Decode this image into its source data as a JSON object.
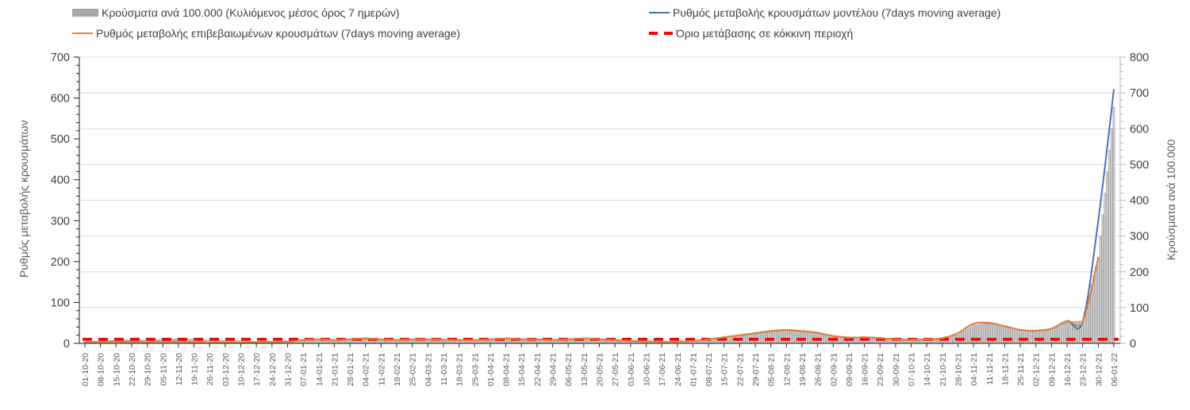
{
  "legend": {
    "items": [
      {
        "label": "Κρούσματα ανά 100.000 (Κυλιόμενος μέσος όρος 7 ημερών)",
        "swatch": "bar"
      },
      {
        "label": "Ρυθμός μεταβολής κρουσμάτων μοντέλου (7days moving average)",
        "swatch": "line-blue"
      },
      {
        "label": "Ρυθμός μεταβολής επιβεβαιωμένων κρουσμάτων (7days moving average)",
        "swatch": "line-orange"
      },
      {
        "label": "Όριο μετάβασης σε κόκκινη περιοχή",
        "swatch": "dash-red"
      }
    ]
  },
  "colors": {
    "bar_fill": "#d6d6d6",
    "bar_stroke": "#8f8f8f",
    "bar_legend": "#a8a8a8",
    "model_line": "#4472c4",
    "confirmed_line": "#ed7d31",
    "threshold": "#ff0000",
    "grid": "#d9d9d9",
    "axis_dark": "#404040",
    "axis_light": "#bfbfbf",
    "tick_text": "#404040",
    "xtick_text": "#595959"
  },
  "chart_data": {
    "type": "bar",
    "combo_note": "daily gray bars on right axis + two smoothed lines on left axis + red dashed threshold",
    "title": "",
    "axis_left": {
      "label": "Ρυθμός μεταβολής κρουσμάτων",
      "min": 0,
      "max": 700,
      "major_step": 100,
      "minor_step": 20,
      "ticks": [
        0,
        100,
        200,
        300,
        400,
        500,
        600,
        700
      ]
    },
    "axis_right": {
      "label": "Κρούσματα ανά 100.000",
      "min": 0,
      "max": 800,
      "major_step": 100,
      "minor_step": 20,
      "ticks": [
        0,
        100,
        200,
        300,
        400,
        500,
        600,
        700,
        800
      ]
    },
    "grid": "horizontal, every 100 of right axis",
    "legend_position": "top, two columns",
    "categories": [
      "01-10-20",
      "08-10-20",
      "15-10-20",
      "22-10-20",
      "29-10-20",
      "05-11-20",
      "12-11-20",
      "19-11-20",
      "26-11-20",
      "03-12-20",
      "10-12-20",
      "17-12-20",
      "24-12-20",
      "31-12-20",
      "07-01-21",
      "14-01-21",
      "21-01-21",
      "28-01-21",
      "04-02-21",
      "11-02-21",
      "18-02-21",
      "25-02-21",
      "04-03-21",
      "11-03-21",
      "18-03-21",
      "25-03-21",
      "01-04-21",
      "08-04-21",
      "15-04-21",
      "22-04-21",
      "29-04-21",
      "06-05-21",
      "13-05-21",
      "20-05-21",
      "27-05-21",
      "03-06-21",
      "10-06-21",
      "17-06-21",
      "24-06-21",
      "01-07-21",
      "08-07-21",
      "15-07-21",
      "22-07-21",
      "29-07-21",
      "05-08-21",
      "12-08-21",
      "19-08-21",
      "26-08-21",
      "02-09-21",
      "09-09-21",
      "16-09-21",
      "23-09-21",
      "30-09-21",
      "07-10-21",
      "14-10-21",
      "21-10-21",
      "28-10-21",
      "04-11-21",
      "11-11-21",
      "18-11-21",
      "25-11-21",
      "02-12-21",
      "09-12-21",
      "16-12-21",
      "23-12-21",
      "30-12-21",
      "06-01-22"
    ],
    "series": [
      {
        "name": "Κρούσματα ανά 100.000 (Κυλιόμενος μέσος όρος 7 ημερών)",
        "kind": "bar",
        "axis": "right",
        "values": [
          5,
          7,
          9,
          10,
          9,
          11,
          13,
          11,
          9,
          8,
          7,
          6,
          6,
          7,
          8,
          10,
          9,
          10,
          12,
          11,
          10,
          11,
          12,
          11,
          10,
          10,
          12,
          13,
          12,
          11,
          10,
          11,
          12,
          10,
          9,
          7,
          6,
          5,
          5,
          7,
          11,
          16,
          22,
          27,
          33,
          36,
          33,
          28,
          22,
          18,
          15,
          16,
          13,
          11,
          12,
          15,
          24,
          50,
          57,
          49,
          38,
          36,
          42,
          60,
          63,
          240,
          660
        ]
      },
      {
        "name": "Ρυθμός μεταβολής κρουσμάτων μοντέλου (7days moving average)",
        "kind": "line",
        "axis": "left",
        "values": [
          2,
          3,
          4,
          4,
          3,
          4,
          4,
          3,
          2,
          2,
          2,
          2,
          3,
          4,
          8,
          10,
          8,
          10,
          12,
          10,
          8,
          10,
          10,
          9,
          8,
          8,
          10,
          12,
          10,
          10,
          8,
          10,
          12,
          10,
          8,
          6,
          5,
          4,
          4,
          6,
          10,
          15,
          20,
          25,
          30,
          33,
          30,
          26,
          18,
          14,
          15,
          13,
          10,
          9,
          10,
          13,
          25,
          48,
          50,
          42,
          33,
          31,
          36,
          55,
          53,
          300,
          620
        ]
      },
      {
        "name": "Ρυθμός μεταβολής επιβεβαιωμένων κρουσμάτων (7days moving average)",
        "kind": "line",
        "axis": "left",
        "values": [
          2,
          3,
          4,
          4,
          3,
          4,
          4,
          3,
          2,
          2,
          2,
          2,
          3,
          4,
          8,
          10,
          8,
          10,
          12,
          10,
          8,
          10,
          10,
          9,
          8,
          8,
          10,
          12,
          10,
          10,
          8,
          10,
          12,
          10,
          8,
          6,
          5,
          4,
          4,
          6,
          10,
          15,
          20,
          25,
          30,
          33,
          30,
          26,
          18,
          14,
          15,
          13,
          10,
          9,
          10,
          13,
          25,
          48,
          50,
          42,
          33,
          31,
          36,
          55,
          53,
          210,
          null
        ]
      },
      {
        "name": "Όριο μετάβασης σε κόκκινη περιοχή",
        "kind": "threshold",
        "axis": "left",
        "value": 10
      }
    ]
  }
}
